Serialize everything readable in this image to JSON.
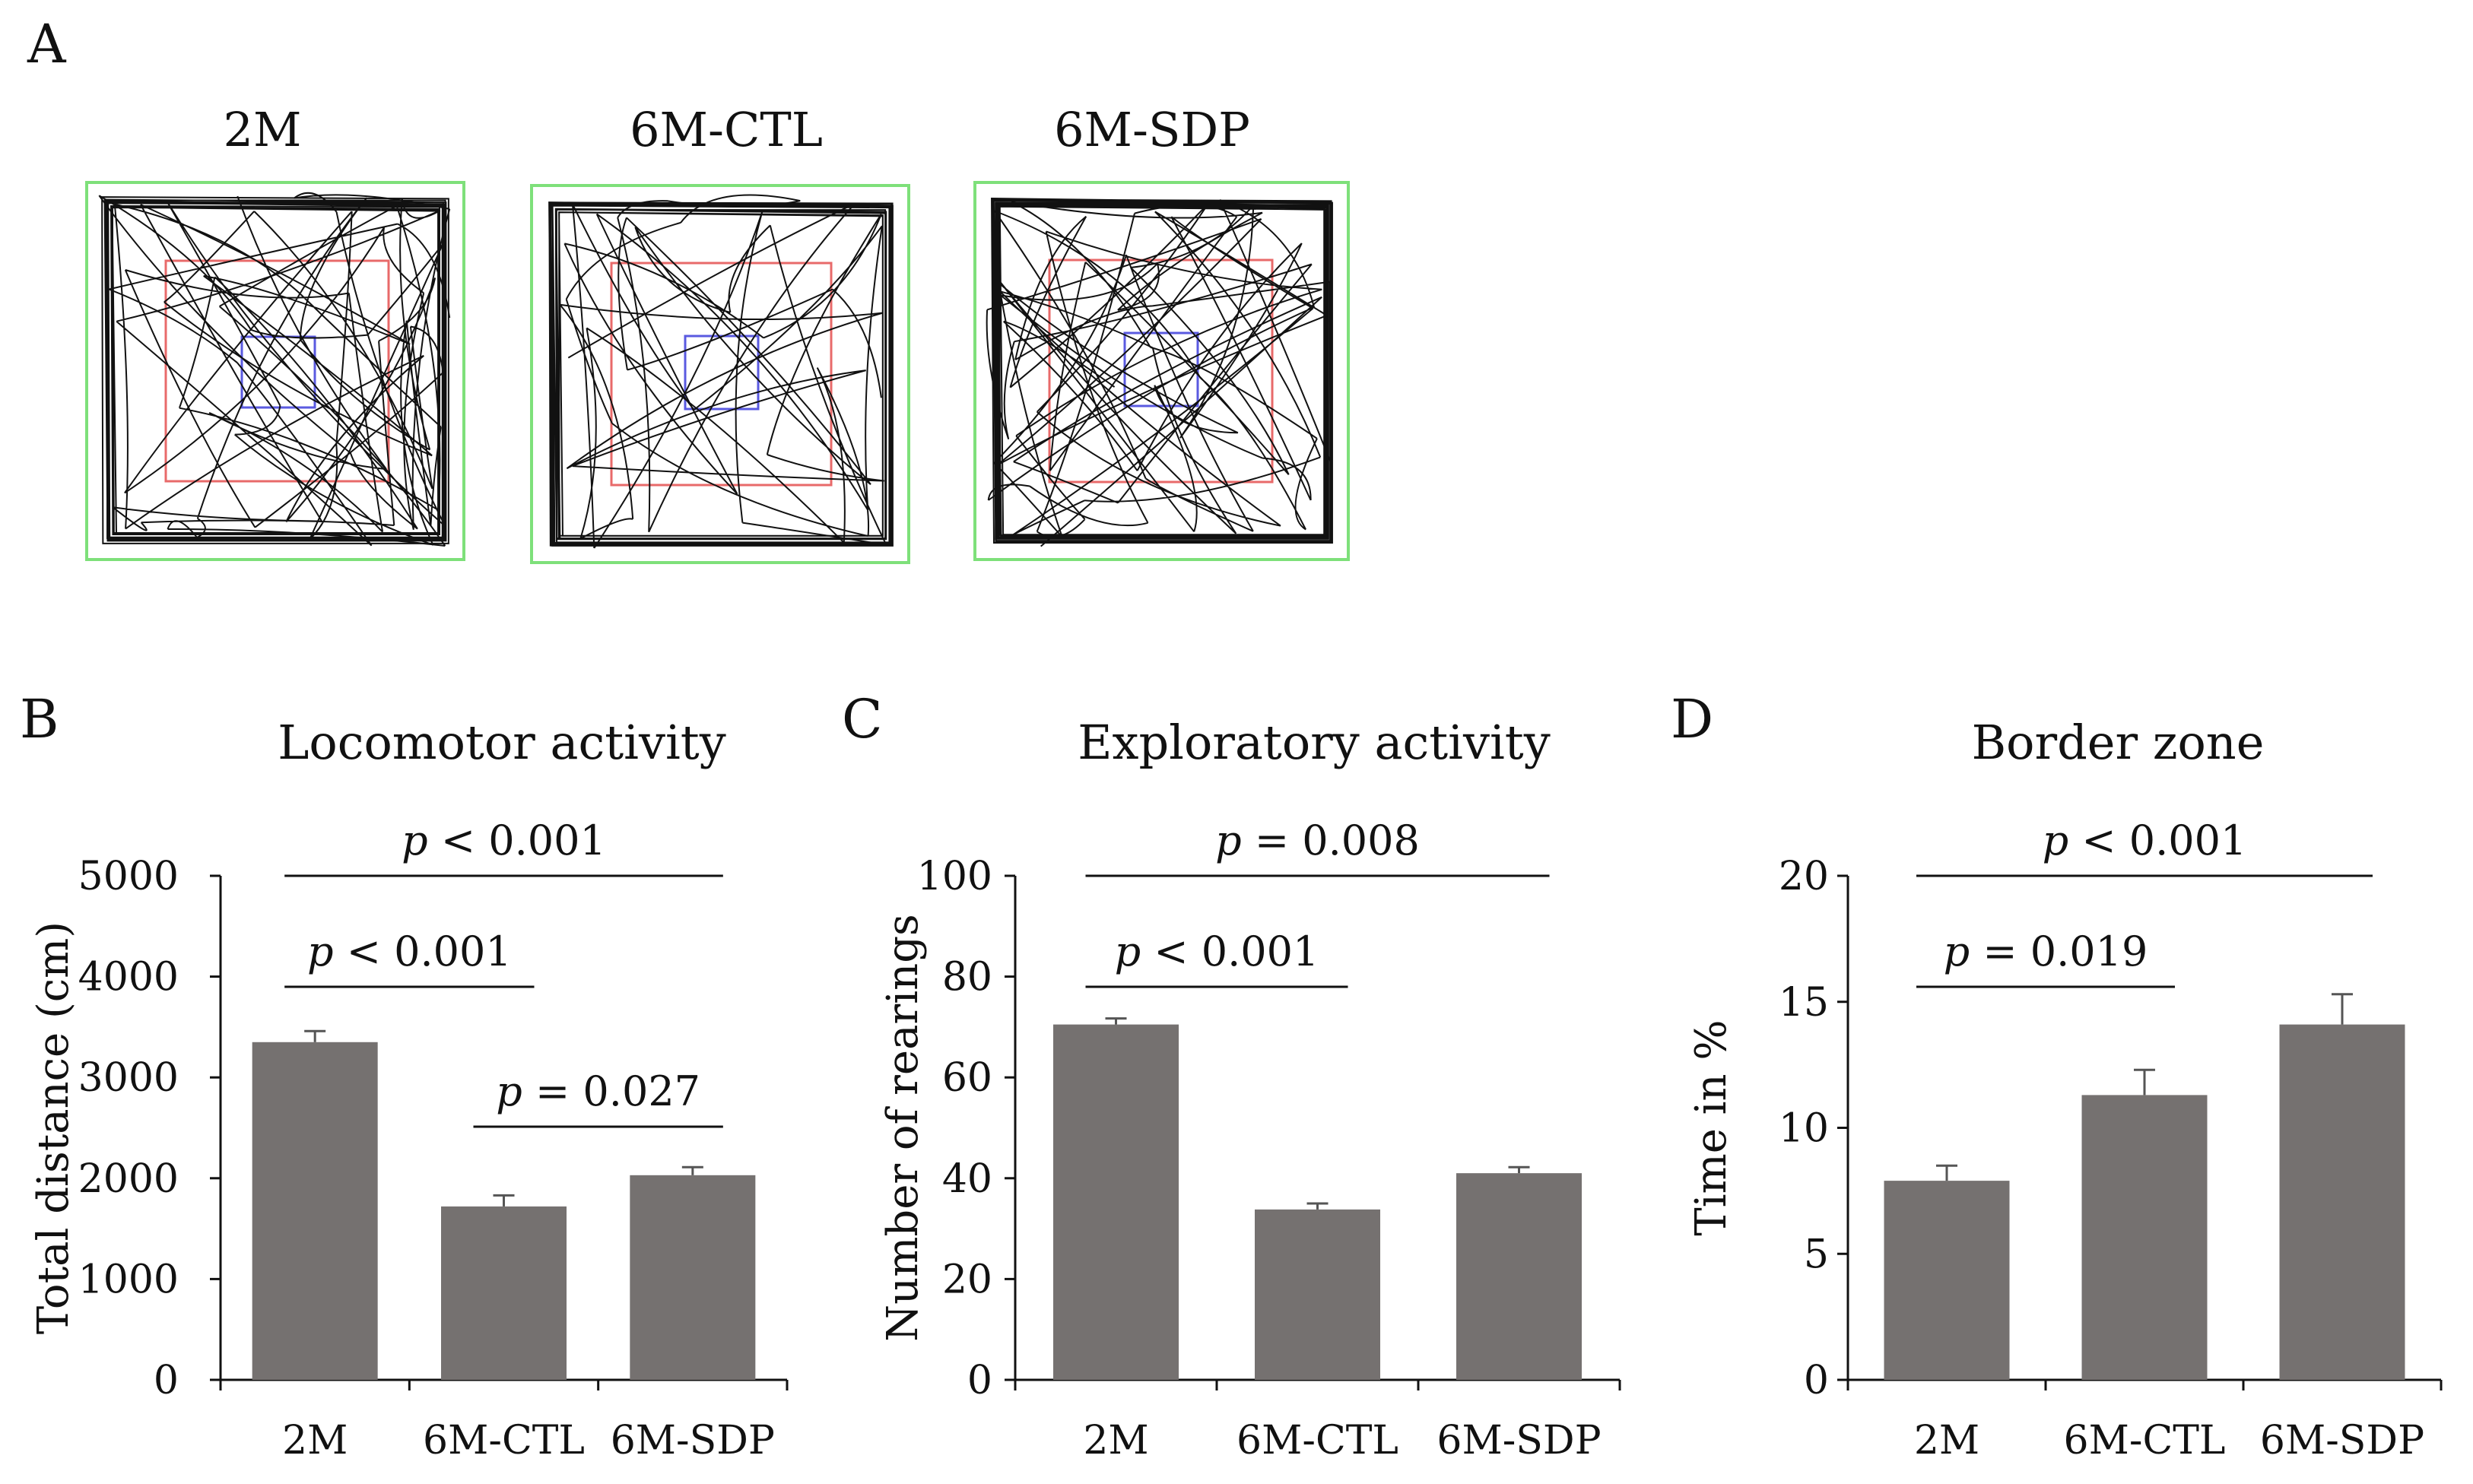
{
  "figure": {
    "panel_a": {
      "label": "A",
      "arenas": [
        {
          "title": "2M",
          "track_density": "high"
        },
        {
          "title": "6M-CTL",
          "track_density": "low"
        },
        {
          "title": "6M-SDP",
          "track_density": "high"
        }
      ],
      "colors": {
        "outer": "#7ee07a",
        "middle": "#e86a6a",
        "center": "#5a5ae0",
        "track": "#111111"
      }
    }
  },
  "chart_data": [
    {
      "type": "bar",
      "panel_label": "B",
      "title": "Locomotor activity",
      "ylabel": "Total distance (cm)",
      "xlabel": "",
      "categories": [
        "2M",
        "6M-CTL",
        "6M-SDP"
      ],
      "values": [
        3350,
        1720,
        2030
      ],
      "errors": [
        110,
        110,
        80
      ],
      "ylim": [
        0,
        5000
      ],
      "yticks": [
        0,
        1000,
        2000,
        3000,
        4000,
        5000
      ],
      "grid": false,
      "bar_color": "#757170",
      "comparisons": [
        {
          "from": 0,
          "to": 2,
          "p_symbol": "p",
          "p_rest": " < 0.001"
        },
        {
          "from": 0,
          "to": 1,
          "p_symbol": "p",
          "p_rest": " < 0.001"
        },
        {
          "from": 1,
          "to": 2,
          "p_symbol": "p",
          "p_rest": " = 0.027"
        }
      ]
    },
    {
      "type": "bar",
      "panel_label": "C",
      "title": "Exploratory activity",
      "ylabel": "Number of rearings",
      "xlabel": "",
      "categories": [
        "2M",
        "6M-CTL",
        "6M-SDP"
      ],
      "values": [
        70.5,
        33.8,
        41
      ],
      "errors": [
        1.2,
        1.2,
        1.2
      ],
      "ylim": [
        0,
        100
      ],
      "yticks": [
        0,
        20,
        40,
        60,
        80,
        100
      ],
      "grid": false,
      "bar_color": "#757170",
      "comparisons": [
        {
          "from": 0,
          "to": 2,
          "p_symbol": "p",
          "p_rest": " = 0.008"
        },
        {
          "from": 0,
          "to": 1,
          "p_symbol": "p",
          "p_rest": " < 0.001"
        }
      ]
    },
    {
      "type": "bar",
      "panel_label": "D",
      "title": "Border zone",
      "ylabel": "Time in %",
      "xlabel": "",
      "categories": [
        "2M",
        "6M-CTL",
        "6M-SDP"
      ],
      "values": [
        7.9,
        11.3,
        14.1
      ],
      "errors": [
        0.6,
        1.0,
        1.2
      ],
      "ylim": [
        0,
        20
      ],
      "yticks": [
        0,
        5,
        10,
        15,
        20
      ],
      "grid": false,
      "bar_color": "#757170",
      "comparisons": [
        {
          "from": 0,
          "to": 2,
          "p_symbol": "p",
          "p_rest": " < 0.001"
        },
        {
          "from": 0,
          "to": 1,
          "p_symbol": "p",
          "p_rest": " = 0.019"
        }
      ]
    }
  ]
}
